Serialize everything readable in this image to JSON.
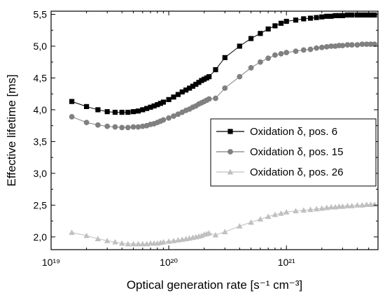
{
  "chart_data": {
    "type": "scatter",
    "title": "",
    "xlabel": "Optical generation rate [s⁻¹ cm⁻³]",
    "ylabel": "Effective lifetime [ms]",
    "x_scale": "log",
    "xlim": [
      1e+19,
      6e+21
    ],
    "ylim": [
      1.8,
      5.55
    ],
    "x_ticks": [
      {
        "value": 1e+19,
        "label": "10¹⁹"
      },
      {
        "value": 1e+20,
        "label": "10²⁰"
      },
      {
        "value": 1e+21,
        "label": "10²¹"
      }
    ],
    "y_ticks": [
      {
        "value": 2.0,
        "label": "2,0"
      },
      {
        "value": 2.5,
        "label": "2,5"
      },
      {
        "value": 3.0,
        "label": "3,0"
      },
      {
        "value": 3.5,
        "label": "3,5"
      },
      {
        "value": 4.0,
        "label": "4,0"
      },
      {
        "value": 4.5,
        "label": "4,5"
      },
      {
        "value": 5.0,
        "label": "5,0"
      },
      {
        "value": 5.5,
        "label": "5,5"
      }
    ],
    "grid": false,
    "legend_position": "center-right",
    "series": [
      {
        "name": "Oxidation δ, pos. 6",
        "marker": "square",
        "color": "#000000",
        "x": [
          1.5e+19,
          2e+19,
          2.5e+19,
          3e+19,
          3.5e+19,
          4e+19,
          4.5e+19,
          5e+19,
          5.5e+19,
          6e+19,
          6.5e+19,
          7e+19,
          7.5e+19,
          8e+19,
          8.5e+19,
          9e+19,
          1e+20,
          1.1e+20,
          1.2e+20,
          1.3e+20,
          1.4e+20,
          1.5e+20,
          1.6e+20,
          1.7e+20,
          1.8e+20,
          1.9e+20,
          2e+20,
          2.1e+20,
          2.2e+20,
          2.5e+20,
          3e+20,
          4e+20,
          5e+20,
          6e+20,
          7e+20,
          8e+20,
          9e+20,
          1e+21,
          1.2e+21,
          1.4e+21,
          1.6e+21,
          1.8e+21,
          2e+21,
          2.2e+21,
          2.4e+21,
          2.6e+21,
          2.8e+21,
          3e+21,
          3.3e+21,
          3.6e+21,
          4e+21,
          4.4e+21,
          4.8e+21,
          5.2e+21,
          5.6e+21
        ],
        "y": [
          4.13,
          4.05,
          4.0,
          3.97,
          3.96,
          3.96,
          3.96,
          3.97,
          3.98,
          4.0,
          4.02,
          4.04,
          4.06,
          4.08,
          4.1,
          4.12,
          4.16,
          4.2,
          4.24,
          4.28,
          4.31,
          4.34,
          4.37,
          4.4,
          4.43,
          4.46,
          4.48,
          4.5,
          4.52,
          4.63,
          4.82,
          5.0,
          5.12,
          5.2,
          5.27,
          5.32,
          5.36,
          5.39,
          5.41,
          5.43,
          5.44,
          5.45,
          5.46,
          5.47,
          5.47,
          5.48,
          5.48,
          5.48,
          5.49,
          5.49,
          5.49,
          5.49,
          5.49,
          5.49,
          5.49
        ]
      },
      {
        "name": "Oxidation δ, pos. 15",
        "marker": "circle",
        "color": "#808080",
        "x": [
          1.5e+19,
          2e+19,
          2.5e+19,
          3e+19,
          3.5e+19,
          4e+19,
          4.5e+19,
          5e+19,
          5.5e+19,
          6e+19,
          6.5e+19,
          7e+19,
          7.5e+19,
          8e+19,
          8.5e+19,
          9e+19,
          1e+20,
          1.1e+20,
          1.2e+20,
          1.3e+20,
          1.4e+20,
          1.5e+20,
          1.6e+20,
          1.7e+20,
          1.8e+20,
          1.9e+20,
          2e+20,
          2.1e+20,
          2.2e+20,
          2.5e+20,
          3e+20,
          4e+20,
          5e+20,
          6e+20,
          7e+20,
          8e+20,
          9e+20,
          1e+21,
          1.2e+21,
          1.4e+21,
          1.6e+21,
          1.8e+21,
          2e+21,
          2.2e+21,
          2.4e+21,
          2.6e+21,
          2.8e+21,
          3e+21,
          3.3e+21,
          3.6e+21,
          4e+21,
          4.4e+21,
          4.8e+21,
          5.2e+21,
          5.6e+21
        ],
        "y": [
          3.89,
          3.8,
          3.76,
          3.74,
          3.73,
          3.72,
          3.72,
          3.73,
          3.73,
          3.74,
          3.75,
          3.77,
          3.78,
          3.8,
          3.82,
          3.84,
          3.87,
          3.9,
          3.93,
          3.96,
          3.99,
          4.01,
          4.04,
          4.06,
          4.09,
          4.11,
          4.13,
          4.15,
          4.17,
          4.18,
          4.34,
          4.52,
          4.66,
          4.75,
          4.81,
          4.86,
          4.88,
          4.9,
          4.92,
          4.94,
          4.95,
          4.97,
          4.98,
          4.99,
          5.0,
          5.0,
          5.01,
          5.01,
          5.02,
          5.02,
          5.02,
          5.03,
          5.03,
          5.03,
          5.03
        ]
      },
      {
        "name": "Oxidation δ, pos. 26",
        "marker": "triangle",
        "color": "#c0c0c0",
        "x": [
          1.5e+19,
          2e+19,
          2.5e+19,
          3e+19,
          3.5e+19,
          4e+19,
          4.5e+19,
          5e+19,
          5.5e+19,
          6e+19,
          6.5e+19,
          7e+19,
          7.5e+19,
          8e+19,
          8.5e+19,
          9e+19,
          1e+20,
          1.1e+20,
          1.2e+20,
          1.3e+20,
          1.4e+20,
          1.5e+20,
          1.6e+20,
          1.7e+20,
          1.8e+20,
          1.9e+20,
          2e+20,
          2.1e+20,
          2.2e+20,
          2.5e+20,
          3e+20,
          4e+20,
          5e+20,
          6e+20,
          7e+20,
          8e+20,
          9e+20,
          1e+21,
          1.2e+21,
          1.4e+21,
          1.6e+21,
          1.8e+21,
          2e+21,
          2.2e+21,
          2.4e+21,
          2.6e+21,
          2.8e+21,
          3e+21,
          3.3e+21,
          3.6e+21,
          4e+21,
          4.4e+21,
          4.8e+21,
          5.2e+21,
          5.6e+21
        ],
        "y": [
          2.07,
          2.02,
          1.97,
          1.94,
          1.92,
          1.9,
          1.89,
          1.89,
          1.89,
          1.89,
          1.89,
          1.9,
          1.9,
          1.9,
          1.91,
          1.92,
          1.93,
          1.94,
          1.95,
          1.96,
          1.97,
          1.98,
          1.99,
          2.0,
          2.01,
          2.02,
          2.04,
          2.05,
          2.06,
          2.03,
          2.08,
          2.17,
          2.23,
          2.28,
          2.32,
          2.35,
          2.37,
          2.39,
          2.41,
          2.42,
          2.43,
          2.44,
          2.45,
          2.46,
          2.47,
          2.47,
          2.48,
          2.48,
          2.49,
          2.49,
          2.5,
          2.5,
          2.51,
          2.51,
          2.51
        ]
      }
    ]
  }
}
